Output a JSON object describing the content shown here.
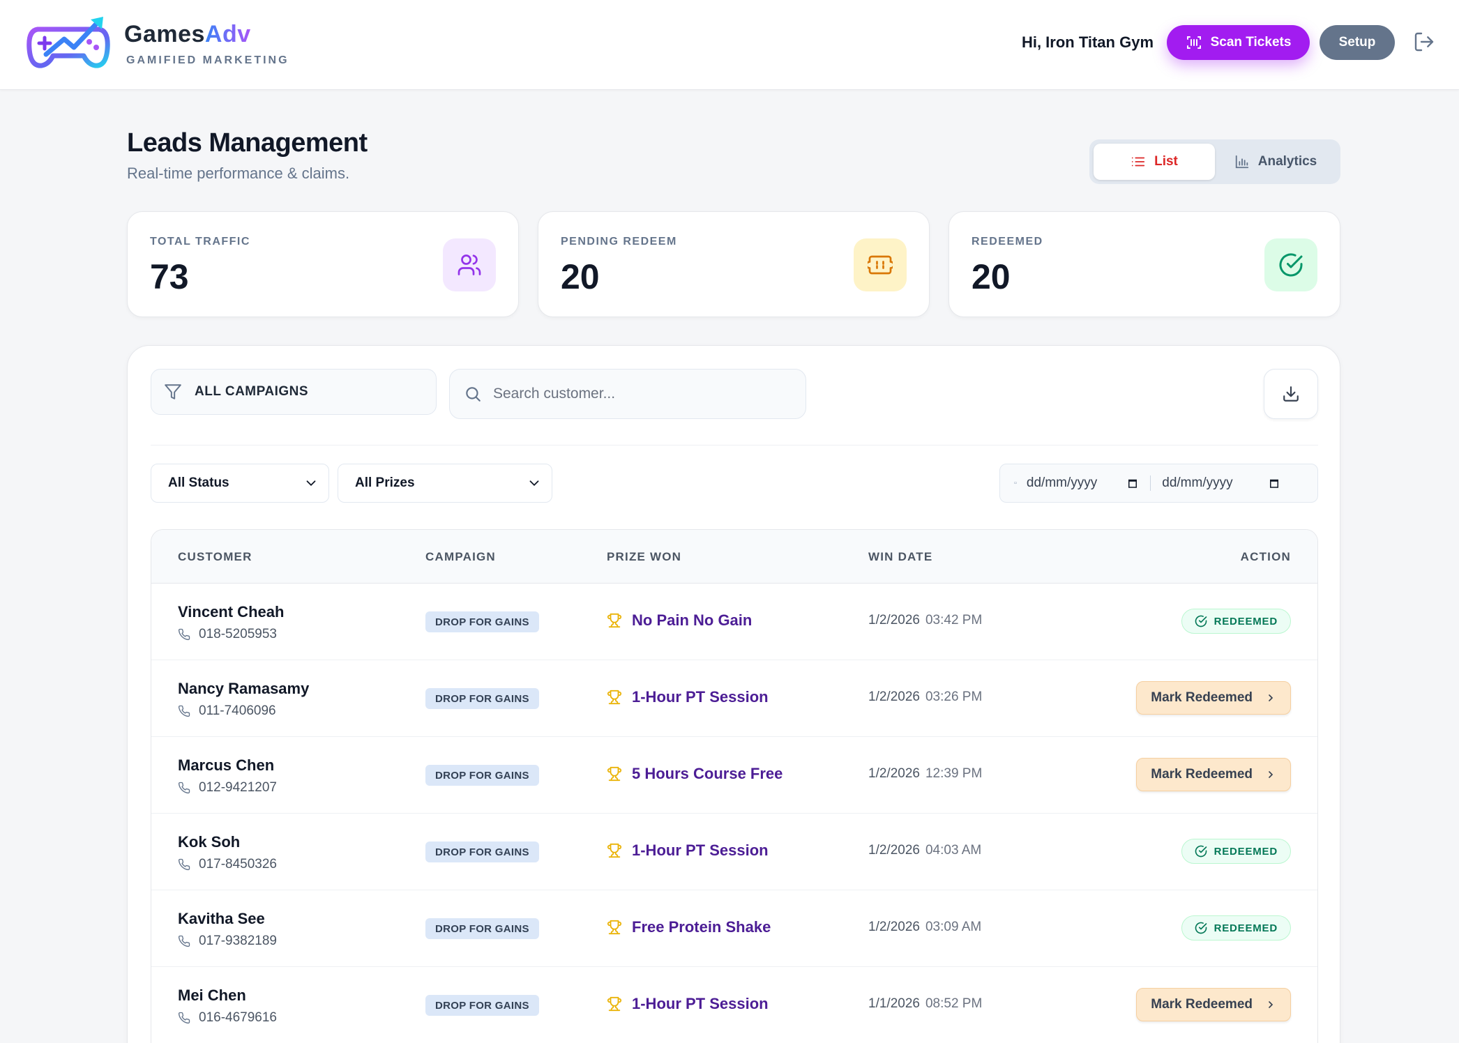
{
  "header": {
    "brand_name_a": "Games",
    "brand_name_b": "Adv",
    "brand_tagline": "GAMIFIED MARKETING",
    "greeting": "Hi, Iron Titan Gym",
    "scan_label": "Scan Tickets",
    "setup_label": "Setup",
    "accent": "#a21cf0"
  },
  "page": {
    "title": "Leads Management",
    "subtitle": "Real-time performance & claims.",
    "view_list": "List",
    "view_analytics": "Analytics"
  },
  "stats": [
    {
      "label": "TOTAL TRAFFIC",
      "value": "73",
      "icon": "users-icon",
      "color": "#f3e8ff"
    },
    {
      "label": "PENDING REDEEM",
      "value": "20",
      "icon": "ticket-icon",
      "color": "#fef3c7"
    },
    {
      "label": "REDEEMED",
      "value": "20",
      "icon": "check-circle-icon",
      "color": "#dcfce7"
    }
  ],
  "filters": {
    "campaign": "ALL CAMPAIGNS",
    "search_placeholder": "Search customer...",
    "status": "All Status",
    "prizes": "All Prizes",
    "date_from": "dd/mm/yyyy",
    "date_to": "dd/mm/yyyy"
  },
  "table": {
    "headers": {
      "customer": "CUSTOMER",
      "campaign": "CAMPAIGN",
      "prize": "PRIZE WON",
      "date": "WIN DATE",
      "action": "ACTION"
    },
    "redeemed_label": "REDEEMED",
    "mark_label": "Mark Redeemed",
    "rows": [
      {
        "name": "Vincent Cheah",
        "phone": "018-5205953",
        "campaign": "DROP FOR GAINS",
        "prize": "No Pain No Gain",
        "date": "1/2/2026",
        "time": "03:42 PM",
        "status": "redeemed"
      },
      {
        "name": "Nancy Ramasamy",
        "phone": "011-7406096",
        "campaign": "DROP FOR GAINS",
        "prize": "1-Hour PT Session",
        "date": "1/2/2026",
        "time": "03:26 PM",
        "status": "pending"
      },
      {
        "name": "Marcus Chen",
        "phone": "012-9421207",
        "campaign": "DROP FOR GAINS",
        "prize": "5 Hours Course Free",
        "date": "1/2/2026",
        "time": "12:39 PM",
        "status": "pending"
      },
      {
        "name": "Kok Soh",
        "phone": "017-8450326",
        "campaign": "DROP FOR GAINS",
        "prize": "1-Hour PT Session",
        "date": "1/2/2026",
        "time": "04:03 AM",
        "status": "redeemed"
      },
      {
        "name": "Kavitha See",
        "phone": "017-9382189",
        "campaign": "DROP FOR GAINS",
        "prize": "Free Protein Shake",
        "date": "1/2/2026",
        "time": "03:09 AM",
        "status": "redeemed"
      },
      {
        "name": "Mei Chen",
        "phone": "016-4679616",
        "campaign": "DROP FOR GAINS",
        "prize": "1-Hour PT Session",
        "date": "1/1/2026",
        "time": "08:52 PM",
        "status": "pending"
      }
    ]
  }
}
